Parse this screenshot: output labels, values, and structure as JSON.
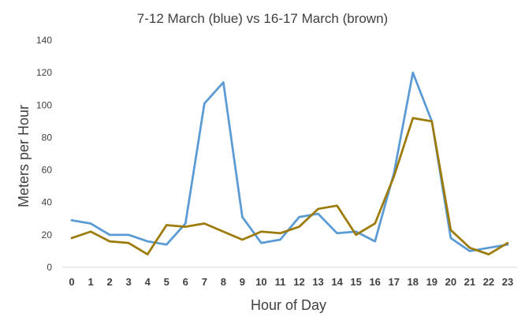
{
  "chart_data": {
    "type": "line",
    "title": "7-12 March (blue) vs 16-17 March (brown)",
    "xlabel": "Hour of Day",
    "ylabel": "Meters per Hour",
    "ylim": [
      0,
      140
    ],
    "ytick_step": 20,
    "grid": false,
    "legend": "none",
    "categories": [
      "0",
      "1",
      "2",
      "3",
      "4",
      "5",
      "6",
      "7",
      "8",
      "9",
      "10",
      "11",
      "12",
      "13",
      "14",
      "15",
      "16",
      "17",
      "18",
      "19",
      "20",
      "21",
      "22",
      "23"
    ],
    "series": [
      {
        "color": "#5b9bd5",
        "values": [
          29,
          27,
          20,
          20,
          16,
          14,
          27,
          101,
          114,
          31,
          15,
          17,
          31,
          33,
          21,
          22,
          16,
          58,
          120,
          90,
          18,
          10,
          12,
          14
        ]
      },
      {
        "color": "#9c7b08",
        "values": [
          18,
          22,
          16,
          15,
          8,
          26,
          25,
          27,
          22,
          17,
          22,
          21,
          25,
          36,
          38,
          20,
          27,
          56,
          92,
          90,
          23,
          12,
          8,
          15
        ]
      }
    ]
  }
}
